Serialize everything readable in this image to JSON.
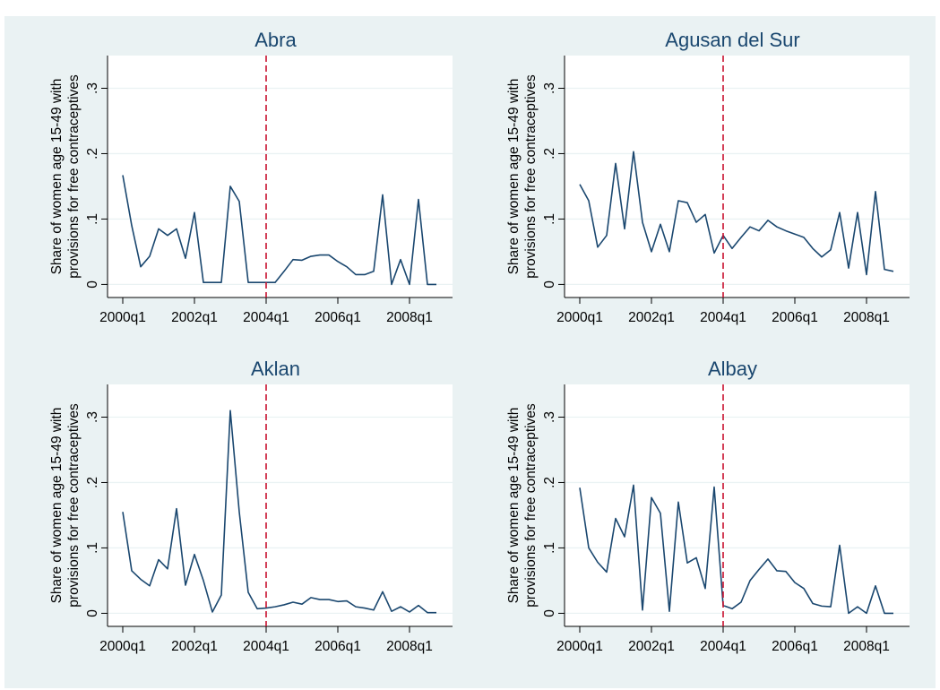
{
  "chart_data": [
    {
      "type": "line",
      "title": "Abra",
      "ylabel": [
        "Share of women age 15-49 with",
        "provisions for free contraceptives"
      ],
      "x": [
        160,
        161,
        162,
        163,
        164,
        165,
        166,
        167,
        168,
        169,
        170,
        171,
        172,
        173,
        174,
        175,
        176,
        177,
        178,
        179,
        180,
        181,
        182,
        183,
        184,
        185,
        186,
        187,
        188,
        189,
        190,
        191,
        192,
        193,
        194,
        195
      ],
      "values": [
        0.167,
        0.09,
        0.027,
        0.043,
        0.085,
        0.075,
        0.085,
        0.04,
        0.11,
        0.003,
        0.003,
        0.003,
        0.15,
        0.127,
        0.003,
        0.003,
        0.003,
        0.003,
        0.02,
        0.038,
        0.037,
        0.043,
        0.045,
        0.045,
        0.035,
        0.027,
        0.015,
        0.015,
        0.02,
        0.137,
        0,
        0.038,
        0,
        0.13,
        0,
        0
      ],
      "color": "#1a476f",
      "vline": 176,
      "vline_color": "#c8102e",
      "xlim": [
        158.3,
        196.8
      ],
      "xticks": [
        {
          "value": 160,
          "label": "2000q1"
        },
        {
          "value": 168,
          "label": "2002q1"
        },
        {
          "value": 176,
          "label": "2004q1"
        },
        {
          "value": 184,
          "label": "2006q1"
        },
        {
          "value": 192,
          "label": "2008q1"
        }
      ],
      "ylim": [
        -0.02,
        0.35
      ],
      "yticks": [
        0,
        {
          "value": 0.1,
          "label": ".1"
        },
        {
          "value": 0.2,
          "label": ".2"
        },
        {
          "value": 0.3,
          "label": ".3"
        }
      ],
      "grid": true
    },
    {
      "type": "line",
      "title": "Agusan del Sur",
      "ylabel": [
        "Share of women age 15-49 with",
        "provisions for free contraceptives"
      ],
      "x": [
        160,
        161,
        162,
        163,
        164,
        165,
        166,
        167,
        168,
        169,
        170,
        171,
        172,
        173,
        174,
        175,
        176,
        177,
        178,
        179,
        180,
        181,
        182,
        183,
        184,
        185,
        186,
        187,
        188,
        189,
        190,
        191,
        192,
        193,
        194,
        195
      ],
      "values": [
        0.153,
        0.128,
        0.057,
        0.075,
        0.185,
        0.085,
        0.203,
        0.095,
        0.05,
        0.092,
        0.05,
        0.128,
        0.125,
        0.095,
        0.107,
        0.048,
        0.075,
        0.055,
        0.072,
        0.088,
        0.082,
        0.098,
        0.088,
        0.082,
        0.077,
        0.072,
        0.055,
        0.042,
        0.053,
        0.11,
        0.025,
        0.11,
        0.015,
        0.142,
        0.023,
        0.02
      ],
      "color": "#1a476f",
      "vline": 176,
      "vline_color": "#c8102e",
      "xlim": [
        158.3,
        196.8
      ],
      "xticks": [
        {
          "value": 160,
          "label": "2000q1"
        },
        {
          "value": 168,
          "label": "2002q1"
        },
        {
          "value": 176,
          "label": "2004q1"
        },
        {
          "value": 184,
          "label": "2006q1"
        },
        {
          "value": 192,
          "label": "2008q1"
        }
      ],
      "ylim": [
        -0.02,
        0.35
      ],
      "yticks": [
        0,
        {
          "value": 0.1,
          "label": ".1"
        },
        {
          "value": 0.2,
          "label": ".2"
        },
        {
          "value": 0.3,
          "label": ".3"
        }
      ],
      "grid": true
    },
    {
      "type": "line",
      "title": "Aklan",
      "ylabel": [
        "Share of women age 15-49 with",
        "provisions for free contraceptives"
      ],
      "x": [
        160,
        161,
        162,
        163,
        164,
        165,
        166,
        167,
        168,
        169,
        170,
        171,
        172,
        173,
        174,
        175,
        176,
        177,
        178,
        179,
        180,
        181,
        182,
        183,
        184,
        185,
        186,
        187,
        188,
        189,
        190,
        191,
        192,
        193,
        194,
        195
      ],
      "values": [
        0.155,
        0.065,
        0.052,
        0.042,
        0.082,
        0.068,
        0.16,
        0.043,
        0.09,
        0.05,
        0.002,
        0.028,
        0.31,
        0.155,
        0.032,
        0.007,
        0.008,
        0.01,
        0.013,
        0.017,
        0.014,
        0.024,
        0.021,
        0.021,
        0.018,
        0.019,
        0.01,
        0.008,
        0.005,
        0.033,
        0.003,
        0.01,
        0.002,
        0.012,
        0.001,
        0.001
      ],
      "color": "#1a476f",
      "vline": 176,
      "vline_color": "#c8102e",
      "xlim": [
        158.3,
        196.8
      ],
      "xticks": [
        {
          "value": 160,
          "label": "2000q1"
        },
        {
          "value": 168,
          "label": "2002q1"
        },
        {
          "value": 176,
          "label": "2004q1"
        },
        {
          "value": 184,
          "label": "2006q1"
        },
        {
          "value": 192,
          "label": "2008q1"
        }
      ],
      "ylim": [
        -0.02,
        0.35
      ],
      "yticks": [
        0,
        {
          "value": 0.1,
          "label": ".1"
        },
        {
          "value": 0.2,
          "label": ".2"
        },
        {
          "value": 0.3,
          "label": ".3"
        }
      ],
      "grid": true
    },
    {
      "type": "line",
      "title": "Albay",
      "ylabel": [
        "Share of women age 15-49 with",
        "provisions for free contraceptives"
      ],
      "x": [
        160,
        161,
        162,
        163,
        164,
        165,
        166,
        167,
        168,
        169,
        170,
        171,
        172,
        173,
        174,
        175,
        176,
        177,
        178,
        179,
        180,
        181,
        182,
        183,
        184,
        185,
        186,
        187,
        188,
        189,
        190,
        191,
        192,
        193,
        194,
        195
      ],
      "values": [
        0.192,
        0.1,
        0.078,
        0.063,
        0.145,
        0.117,
        0.196,
        0.005,
        0.177,
        0.153,
        0.003,
        0.17,
        0.077,
        0.085,
        0.038,
        0.193,
        0.012,
        0.007,
        0.017,
        0.05,
        0.067,
        0.083,
        0.065,
        0.064,
        0.047,
        0.038,
        0.015,
        0.011,
        0.01,
        0.104,
        0,
        0.01,
        0,
        0.042,
        0,
        0
      ],
      "color": "#1a476f",
      "vline": 176,
      "vline_color": "#c8102e",
      "xlim": [
        158.3,
        196.8
      ],
      "xticks": [
        {
          "value": 160,
          "label": "2000q1"
        },
        {
          "value": 168,
          "label": "2002q1"
        },
        {
          "value": 176,
          "label": "2004q1"
        },
        {
          "value": 184,
          "label": "2006q1"
        },
        {
          "value": 192,
          "label": "2008q1"
        }
      ],
      "ylim": [
        -0.02,
        0.35
      ],
      "yticks": [
        0,
        {
          "value": 0.1,
          "label": ".1"
        },
        {
          "value": 0.2,
          "label": ".2"
        },
        {
          "value": 0.3,
          "label": ".3"
        }
      ],
      "grid": true
    }
  ]
}
